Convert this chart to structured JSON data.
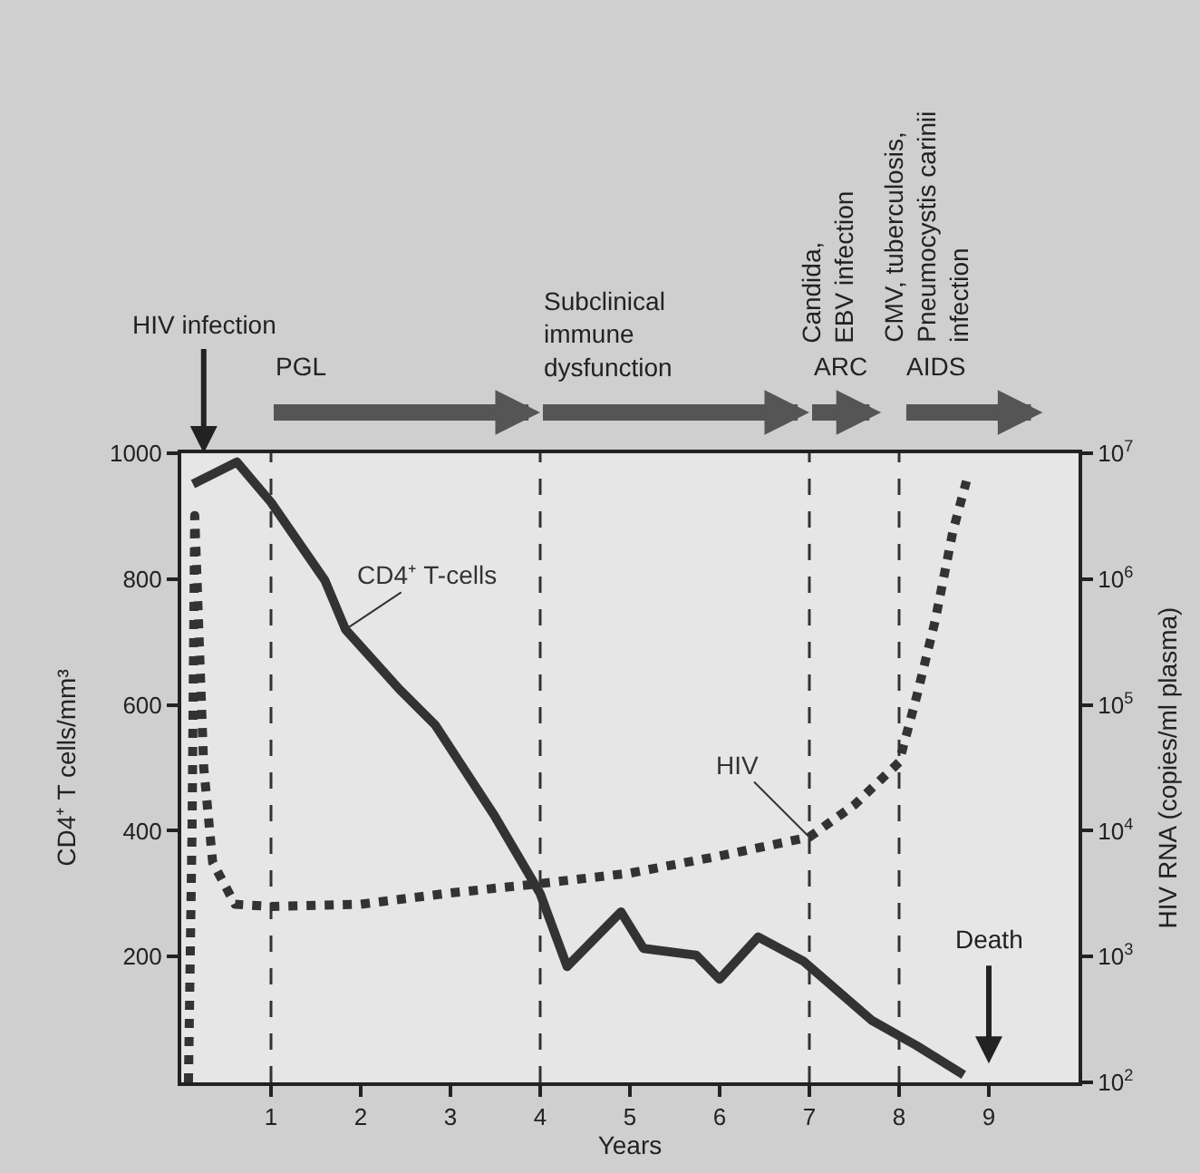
{
  "chart_data": {
    "type": "line",
    "xlabel": "Years",
    "ylabel": "CD4⁺ T cells/mm³",
    "y2label": "HIV RNA (copies/ml plasma)",
    "xlim": [
      0,
      10
    ],
    "xticks": [
      1,
      2,
      3,
      4,
      5,
      6,
      7,
      8,
      9
    ],
    "ylim": [
      0,
      1000
    ],
    "yticks": [
      200,
      400,
      600,
      800,
      1000
    ],
    "y2lim": [
      100,
      10000000
    ],
    "y2ticks": [
      {
        "value": 100,
        "label": "10$^{2}$"
      },
      {
        "value": 1000,
        "label": "10$^{3}$"
      },
      {
        "value": 10000,
        "label": "10$^{4}$"
      },
      {
        "value": 100000,
        "label": "10$^{5}$"
      },
      {
        "value": 1000000,
        "label": "10$^{6}$"
      },
      {
        "value": 10000000,
        "label": "10$^{7}$"
      }
    ],
    "log": "y2",
    "grid": false,
    "legend": false,
    "marker": "none",
    "series": [
      {
        "name": "CD4⁺ T-cells",
        "color": "#333333",
        "line_style": "solid",
        "x": [
          0.13,
          0.62,
          1.0,
          1.6,
          1.83,
          2.43,
          2.83,
          3.49,
          4.0,
          4.3,
          4.9,
          5.15,
          5.74,
          6.0,
          6.43,
          6.93,
          7.7,
          8.2,
          8.72
        ],
        "values": [
          951,
          986,
          922,
          798,
          720,
          625,
          568,
          424,
          300,
          184,
          271,
          213,
          202,
          164,
          231,
          193,
          98,
          58,
          12
        ]
      },
      {
        "name": "HIV",
        "color": "#333333",
        "line_style": "dotted",
        "axis": "y2",
        "x": [
          0.08,
          0.12,
          0.15,
          0.2,
          0.25,
          0.35,
          0.6,
          1,
          2,
          3,
          4,
          5,
          6,
          7,
          7.5,
          8,
          8.2,
          8.4,
          8.6,
          8.75
        ],
        "values": [
          100,
          10000,
          3200000,
          320000,
          32000,
          5600,
          2600,
          2500,
          2600,
          3200,
          3800,
          4600,
          6300,
          8900,
          16000,
          35000,
          120000,
          460000,
          2400000,
          6000000
        ]
      }
    ],
    "ref_lines": [
      {
        "axis": "x",
        "value": 1,
        "line_style": "dashed",
        "color": "#333333"
      },
      {
        "axis": "x",
        "value": 4,
        "line_style": "dashed",
        "color": "#333333"
      },
      {
        "axis": "x",
        "value": 7,
        "line_style": "dashed",
        "color": "#333333"
      },
      {
        "axis": "x",
        "value": 8,
        "line_style": "dashed",
        "color": "#333333"
      }
    ],
    "annotations": [
      "HIV infection",
      "PGL",
      "Subclinical\nimmune\ndysfunction",
      "Candida,\nEBV infection",
      "ARC",
      "CMV, tuberculosis,\nPneumocystis carinii\ninfection",
      "AIDS",
      "Death"
    ]
  }
}
